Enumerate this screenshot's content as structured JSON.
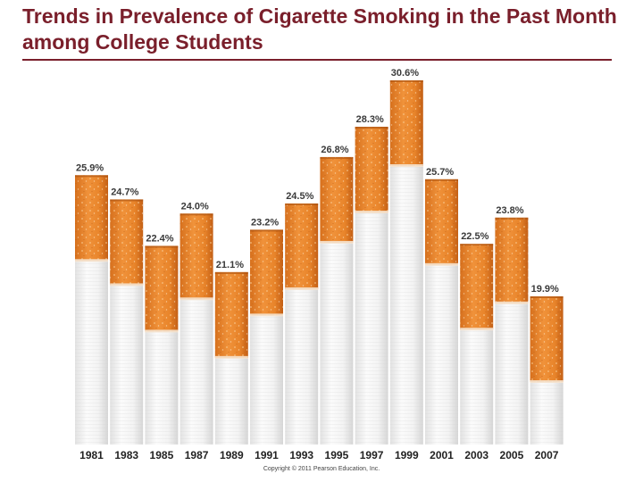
{
  "title": "Trends in Prevalence of Cigarette Smoking in the Past Month among College Students",
  "copyright": "Copyright © 2011 Pearson Education, Inc.",
  "colors": {
    "title": "#7a1f2b",
    "filter": "#e8862a",
    "filter_dark": "#c9661a",
    "paper": "#f7f7f7"
  },
  "chart_data": {
    "type": "bar",
    "title": "Trends in Prevalence of Cigarette Smoking in the Past Month among College Students",
    "xlabel": "",
    "ylabel": "",
    "categories": [
      "1981",
      "1983",
      "1985",
      "1987",
      "1989",
      "1991",
      "1993",
      "1995",
      "1997",
      "1999",
      "2001",
      "2003",
      "2005",
      "2007"
    ],
    "values": [
      25.9,
      24.7,
      22.4,
      24.0,
      21.1,
      23.2,
      24.5,
      26.8,
      28.3,
      30.6,
      25.7,
      22.5,
      23.8,
      19.9
    ],
    "value_labels": [
      "25.9%",
      "24.7%",
      "22.4%",
      "24.0%",
      "21.1%",
      "23.2%",
      "24.5%",
      "26.8%",
      "28.3%",
      "30.6%",
      "25.7%",
      "22.5%",
      "23.8%",
      "19.9%"
    ],
    "ylim": [
      0,
      33
    ],
    "grid": false,
    "legend": "none"
  }
}
